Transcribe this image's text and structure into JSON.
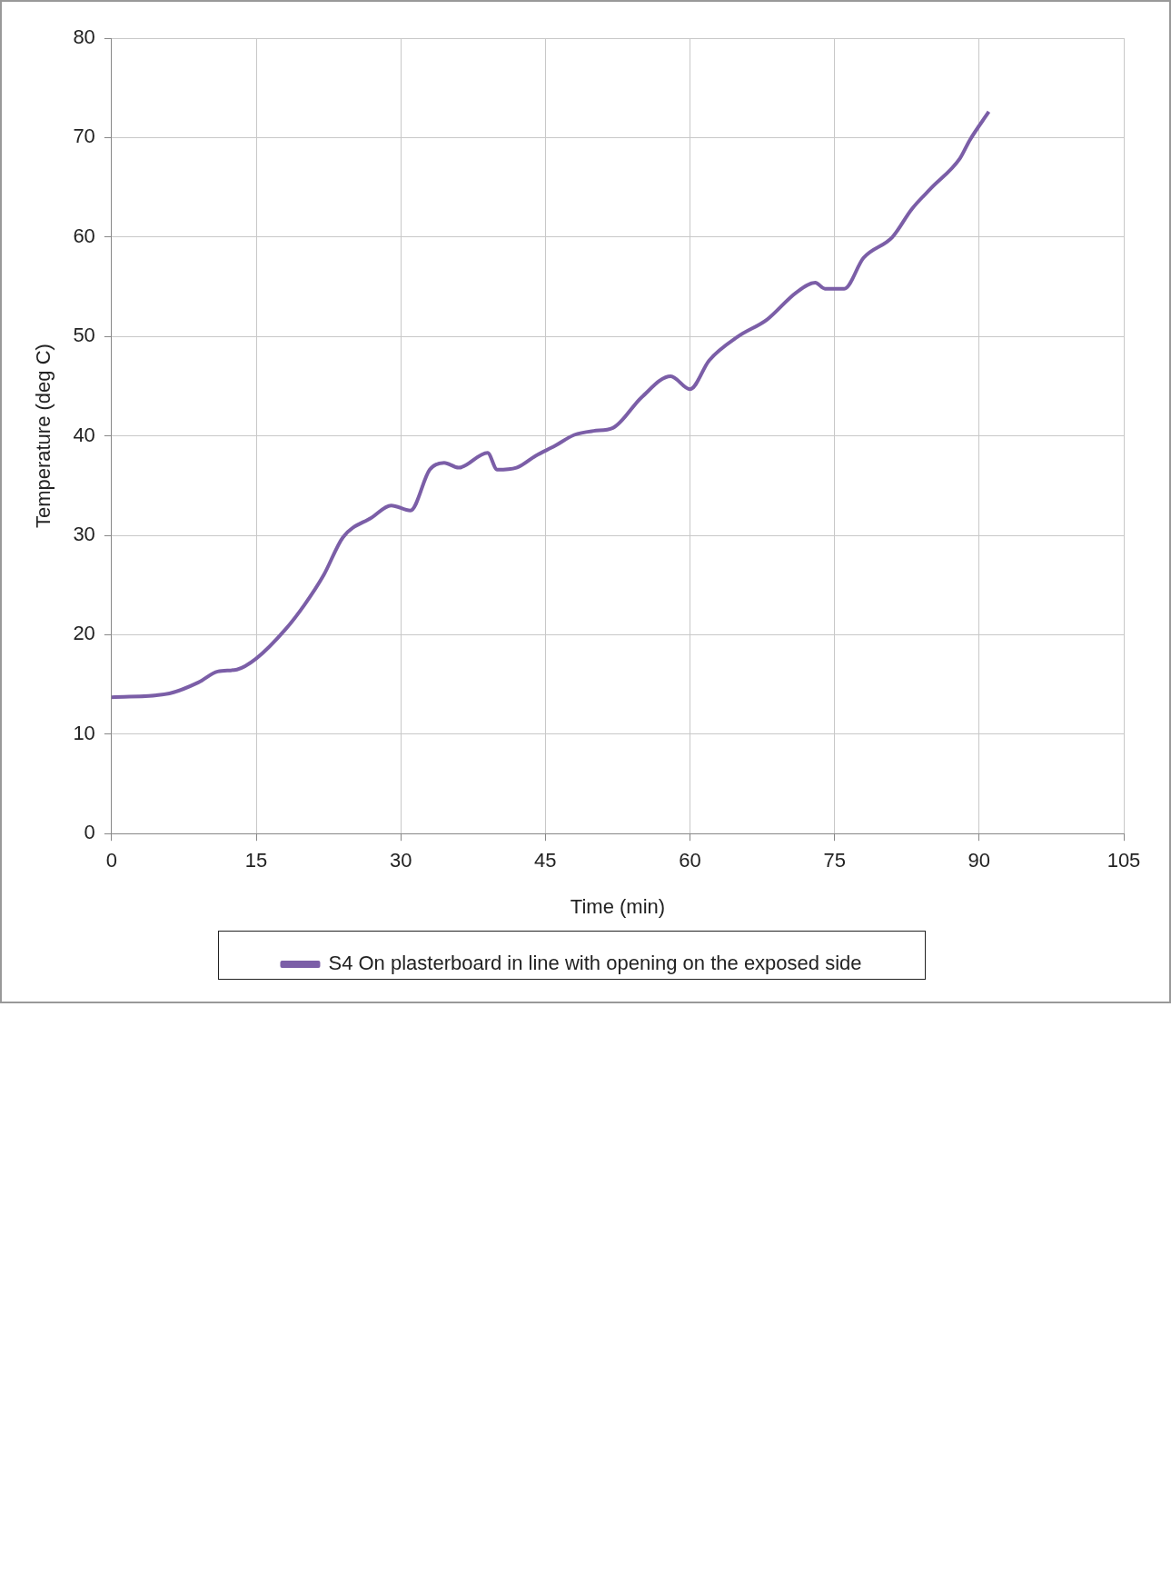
{
  "chart_data": {
    "type": "line",
    "xlabel": "Time (min)",
    "ylabel": "Temperature (deg C)",
    "xlim": [
      0,
      105
    ],
    "xticks": [
      0,
      15,
      30,
      45,
      60,
      75,
      90,
      105
    ],
    "ylim": [
      0,
      80
    ],
    "yticks": [
      0,
      10,
      20,
      30,
      40,
      50,
      60,
      70,
      80
    ],
    "grid": true,
    "legend": "bottom",
    "marker": "none",
    "line_style": "solid",
    "series": [
      {
        "name": "S4 On plasterboard in line with opening on the exposed side",
        "color": "#7b5ea7",
        "x": [
          0,
          6,
          9,
          11,
          13,
          15,
          18,
          20,
          22,
          24,
          27,
          29,
          31,
          33,
          34.5,
          36,
          39,
          40,
          42,
          44,
          46,
          48,
          50,
          52,
          55,
          58,
          60,
          62,
          65,
          68,
          71,
          73,
          74,
          76,
          78,
          81,
          83,
          85,
          88,
          89,
          91
        ],
        "values": [
          13.7,
          14.1,
          15.2,
          16.3,
          16.5,
          17.6,
          20.5,
          23,
          26,
          29.8,
          31.8,
          33,
          32.5,
          36.6,
          37.3,
          36.8,
          38.3,
          36.6,
          36.8,
          38,
          39,
          40.1,
          40.5,
          40.8,
          43.9,
          46,
          44.7,
          47.6,
          50,
          51.7,
          54.4,
          55.4,
          54.8,
          54.8,
          57.9,
          60,
          62.8,
          64.9,
          67.9,
          69.7,
          72.6
        ]
      }
    ]
  }
}
